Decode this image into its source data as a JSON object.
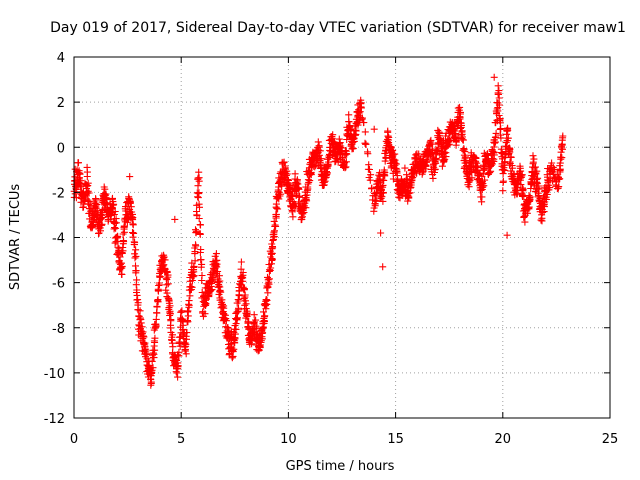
{
  "chart_data": {
    "type": "scatter",
    "title": "Day 019 of 2017, Sidereal Day-to-day VTEC variation (SDTVAR) for receiver maw1",
    "xlabel": "GPS time / hours",
    "ylabel": "SDTVAR / TECUs",
    "xlim": [
      0,
      25
    ],
    "ylim": [
      -12,
      4
    ],
    "xticks": [
      "0",
      "5",
      "10",
      "15",
      "20",
      "25"
    ],
    "yticks": [
      "4",
      "2",
      "0",
      "-2",
      "-4",
      "-6",
      "-8",
      "-10",
      "-12"
    ],
    "grid": true,
    "marker": "+",
    "series": [
      {
        "name": "SDTVAR",
        "color": "#ff0000",
        "anchors": [
          [
            0.0,
            -2.0
          ],
          [
            0.2,
            -1.0
          ],
          [
            0.4,
            -2.5
          ],
          [
            0.6,
            -1.5
          ],
          [
            0.8,
            -3.5
          ],
          [
            1.0,
            -2.5
          ],
          [
            1.2,
            -3.8
          ],
          [
            1.4,
            -2.0
          ],
          [
            1.6,
            -3.0
          ],
          [
            1.8,
            -2.6
          ],
          [
            2.0,
            -4.2
          ],
          [
            2.2,
            -5.5
          ],
          [
            2.4,
            -3.0
          ],
          [
            2.6,
            -2.5
          ],
          [
            2.8,
            -4.0
          ],
          [
            3.0,
            -7.5
          ],
          [
            3.2,
            -8.5
          ],
          [
            3.4,
            -9.6
          ],
          [
            3.6,
            -10.2
          ],
          [
            3.8,
            -8.0
          ],
          [
            4.0,
            -5.5
          ],
          [
            4.2,
            -5.0
          ],
          [
            4.4,
            -6.5
          ],
          [
            4.6,
            -9.0
          ],
          [
            4.8,
            -10.0
          ],
          [
            5.0,
            -7.5
          ],
          [
            5.2,
            -9.0
          ],
          [
            5.4,
            -6.0
          ],
          [
            5.6,
            -5.5
          ],
          [
            5.8,
            -1.2
          ],
          [
            6.0,
            -7.0
          ],
          [
            6.2,
            -6.5
          ],
          [
            6.4,
            -6.0
          ],
          [
            6.6,
            -5.0
          ],
          [
            6.8,
            -6.5
          ],
          [
            7.0,
            -7.5
          ],
          [
            7.2,
            -8.5
          ],
          [
            7.4,
            -9.0
          ],
          [
            7.6,
            -7.5
          ],
          [
            7.8,
            -5.5
          ],
          [
            8.0,
            -7.0
          ],
          [
            8.2,
            -8.5
          ],
          [
            8.4,
            -8.0
          ],
          [
            8.6,
            -9.0
          ],
          [
            8.8,
            -8.0
          ],
          [
            9.0,
            -6.5
          ],
          [
            9.2,
            -5.0
          ],
          [
            9.4,
            -3.0
          ],
          [
            9.6,
            -1.5
          ],
          [
            9.8,
            -1.0
          ],
          [
            10.0,
            -1.8
          ],
          [
            10.2,
            -2.5
          ],
          [
            10.4,
            -1.5
          ],
          [
            10.6,
            -3.0
          ],
          [
            10.8,
            -2.0
          ],
          [
            11.0,
            -1.0
          ],
          [
            11.2,
            -0.5
          ],
          [
            11.4,
            -0.2
          ],
          [
            11.6,
            -1.5
          ],
          [
            11.8,
            -1.0
          ],
          [
            12.0,
            0.5
          ],
          [
            12.2,
            -0.5
          ],
          [
            12.4,
            0.0
          ],
          [
            12.6,
            -1.0
          ],
          [
            12.8,
            1.0
          ],
          [
            13.0,
            0.0
          ],
          [
            13.2,
            1.5
          ],
          [
            13.4,
            1.8
          ],
          [
            14.0,
            -2.5
          ],
          [
            14.2,
            -1.5
          ],
          [
            14.4,
            -2.0
          ],
          [
            14.6,
            0.5
          ],
          [
            14.8,
            -0.5
          ],
          [
            15.0,
            -1.0
          ],
          [
            15.2,
            -2.0
          ],
          [
            15.4,
            -1.5
          ],
          [
            15.6,
            -2.0
          ],
          [
            15.8,
            -1.0
          ],
          [
            16.0,
            -0.5
          ],
          [
            16.2,
            -1.0
          ],
          [
            16.4,
            -0.5
          ],
          [
            16.6,
            0.0
          ],
          [
            16.8,
            -1.0
          ],
          [
            17.0,
            0.5
          ],
          [
            17.2,
            -0.5
          ],
          [
            17.4,
            0.2
          ],
          [
            17.6,
            1.0
          ],
          [
            17.8,
            0.5
          ],
          [
            18.0,
            1.5
          ],
          [
            18.2,
            -0.5
          ],
          [
            18.4,
            -1.5
          ],
          [
            18.6,
            -0.5
          ],
          [
            18.8,
            -1.0
          ],
          [
            19.0,
            -2.0
          ],
          [
            19.2,
            -0.5
          ],
          [
            19.4,
            -1.0
          ],
          [
            19.6,
            0.0
          ],
          [
            19.8,
            2.5
          ],
          [
            20.0,
            -1.5
          ],
          [
            20.2,
            0.5
          ],
          [
            20.4,
            -1.0
          ],
          [
            20.6,
            -2.0
          ],
          [
            20.8,
            -1.0
          ],
          [
            21.0,
            -3.0
          ],
          [
            21.2,
            -2.5
          ],
          [
            21.4,
            -1.0
          ],
          [
            21.6,
            -1.5
          ],
          [
            21.8,
            -3.0
          ],
          [
            22.0,
            -2.0
          ],
          [
            22.2,
            -1.0
          ],
          [
            22.6,
            -1.5
          ],
          [
            22.8,
            0.5
          ]
        ],
        "notable_points": [
          [
            2.6,
            -1.3
          ],
          [
            3.0,
            -7.2
          ],
          [
            4.7,
            -3.2
          ],
          [
            14.3,
            -3.8
          ],
          [
            14.4,
            -5.3
          ],
          [
            19.6,
            3.1
          ],
          [
            20.2,
            -3.9
          ],
          [
            14.0,
            0.8
          ]
        ]
      }
    ]
  }
}
